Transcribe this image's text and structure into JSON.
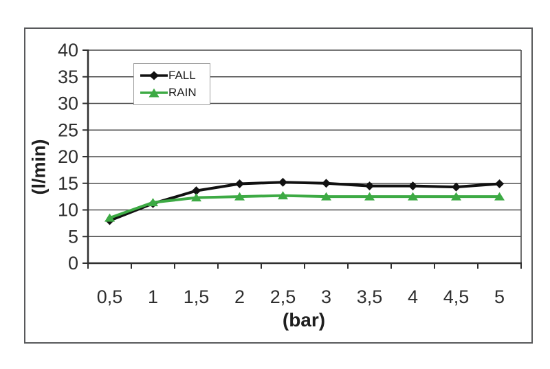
{
  "figure": {
    "background": "#ffffff",
    "frame_border_color": "#58595b",
    "gridline_color": "#4a4a4a",
    "axis_color": "#2f2f2f",
    "tick_text_color": "#2e2e2e"
  },
  "chart_data": {
    "type": "line",
    "title": "",
    "xlabel": "(bar)",
    "ylabel": "(l/min)",
    "x": [
      0.5,
      1,
      1.5,
      2,
      2.5,
      3,
      3.5,
      4,
      4.5,
      5
    ],
    "x_tick_labels": [
      "0,5",
      "1",
      "1,5",
      "2",
      "2,5",
      "3",
      "3,5",
      "4",
      "4,5",
      "5"
    ],
    "y_tick_labels": [
      "0",
      "5",
      "10",
      "15",
      "20",
      "25",
      "30",
      "35",
      "40"
    ],
    "ylim": [
      0,
      40
    ],
    "y_tick_step": 5,
    "grid": "horizontal",
    "legend_position": "inside-top-left",
    "series": [
      {
        "name": "FALL",
        "color": "#111111",
        "marker": "diamond",
        "values": [
          8.0,
          11.2,
          13.6,
          14.9,
          15.2,
          15.0,
          14.5,
          14.5,
          14.3,
          14.9
        ]
      },
      {
        "name": "RAIN",
        "color": "#3daa44",
        "marker": "triangle",
        "values": [
          8.5,
          11.4,
          12.3,
          12.5,
          12.7,
          12.5,
          12.5,
          12.5,
          12.5,
          12.5
        ]
      }
    ]
  }
}
